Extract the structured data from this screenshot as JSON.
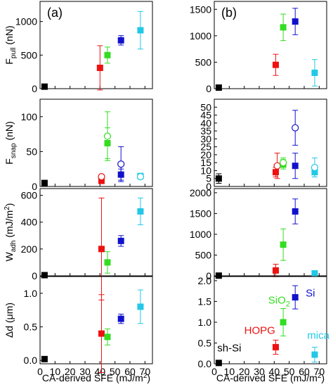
{
  "figure": {
    "x_axis_title": "CA-derived SFE (mJ/m",
    "x_axis_title_sup": "2",
    "x_axis_title_end": ")",
    "row_titles": [
      {
        "main": "F",
        "sub": "pull",
        "tail": " (nN)"
      },
      {
        "main": "F",
        "sub": "snap",
        "tail": " (nN)"
      },
      {
        "main": "W",
        "sub": "adh",
        "tail": " (mJ/m",
        "sup": "2",
        "end": ")"
      },
      {
        "main": "Δd (μm)"
      }
    ]
  },
  "chart_data": [
    {
      "type": "scatter",
      "panel": "a",
      "tag": "(a)",
      "row": 0,
      "xlim": [
        0,
        75
      ],
      "ylim": [
        0,
        1300
      ],
      "xticks": [
        0,
        10,
        20,
        30,
        40,
        50,
        60,
        70
      ],
      "yticks": [
        0,
        500,
        1000
      ],
      "ytick_labels": [
        "0",
        "500",
        "1000"
      ],
      "series": [
        {
          "color": "#000000",
          "points": [
            {
              "x": 3,
              "y": 30,
              "err": 30
            }
          ]
        },
        {
          "color": "#ee1111",
          "points": [
            {
              "x": 40,
              "y": 310,
              "err": 330
            }
          ]
        },
        {
          "color": "#33dd22",
          "points": [
            {
              "x": 45,
              "y": 500,
              "err": 120
            }
          ]
        },
        {
          "color": "#1111cc",
          "points": [
            {
              "x": 54,
              "y": 720,
              "err": 70
            }
          ]
        },
        {
          "color": "#22c8e6",
          "points": [
            {
              "x": 67,
              "y": 870,
              "err": 280
            }
          ]
        }
      ]
    },
    {
      "type": "scatter",
      "panel": "b",
      "tag": "(b)",
      "row": 0,
      "xlim": [
        0,
        75
      ],
      "ylim": [
        0,
        1650
      ],
      "xticks": [
        0,
        10,
        20,
        30,
        40,
        50,
        60,
        70
      ],
      "yticks": [
        0,
        500,
        1000,
        1500
      ],
      "ytick_labels": [
        "0",
        "500",
        "1000",
        "1500"
      ],
      "series": [
        {
          "color": "#000000",
          "points": [
            {
              "x": 3,
              "y": 20,
              "err": 20
            }
          ]
        },
        {
          "color": "#ee1111",
          "points": [
            {
              "x": 41,
              "y": 450,
              "err": 200
            }
          ]
        },
        {
          "color": "#33dd22",
          "points": [
            {
              "x": 46,
              "y": 1160,
              "err": 250
            }
          ]
        },
        {
          "color": "#1111cc",
          "points": [
            {
              "x": 54,
              "y": 1270,
              "err": 250
            }
          ]
        },
        {
          "color": "#22c8e6",
          "points": [
            {
              "x": 67,
              "y": 300,
              "err": 250
            }
          ]
        }
      ]
    },
    {
      "type": "scatter",
      "panel": "a",
      "row": 1,
      "xlim": [
        0,
        75
      ],
      "ylim": [
        0,
        125
      ],
      "xticks": [
        0,
        10,
        20,
        30,
        40,
        50,
        60,
        70
      ],
      "yticks": [
        0,
        50,
        100
      ],
      "ytick_labels": [
        "0",
        "50",
        "100"
      ],
      "series": [
        {
          "color": "#000000",
          "points": [
            {
              "x": 3,
              "y": 5,
              "err": 2
            }
          ]
        },
        {
          "color": "#ee1111",
          "points": [
            {
              "x": 41,
              "y": 8,
              "err": 4
            },
            {
              "x": 41,
              "y": 14,
              "err": 3,
              "open": true
            }
          ]
        },
        {
          "color": "#33dd22",
          "points": [
            {
              "x": 45,
              "y": 62,
              "err": 22
            },
            {
              "x": 45,
              "y": 72,
              "err": 35,
              "open": true
            }
          ]
        },
        {
          "color": "#1111cc",
          "points": [
            {
              "x": 54,
              "y": 17,
              "err": 8
            },
            {
              "x": 54,
              "y": 32,
              "err": 25,
              "open": true
            }
          ]
        },
        {
          "color": "#22c8e6",
          "points": [
            {
              "x": 67,
              "y": 15,
              "err": 3
            },
            {
              "x": 67,
              "y": 14,
              "err": 2,
              "open": true
            }
          ]
        }
      ]
    },
    {
      "type": "scatter",
      "panel": "b",
      "row": 1,
      "xlim": [
        0,
        75
      ],
      "ylim": [
        0,
        55
      ],
      "xticks": [
        0,
        10,
        20,
        30,
        40,
        50,
        60,
        70
      ],
      "yticks": [
        0,
        5,
        10,
        15,
        20,
        25,
        30,
        35,
        40,
        45,
        50
      ],
      "ytick_labels": [
        "0",
        "5",
        "10",
        "15",
        "20",
        "25",
        "30",
        "35",
        "40",
        "45",
        "50"
      ],
      "series": [
        {
          "color": "#000000",
          "points": [
            {
              "x": 3,
              "y": 5,
              "err": 3
            }
          ]
        },
        {
          "color": "#ee1111",
          "points": [
            {
              "x": 41,
              "y": 9,
              "err": 3
            },
            {
              "x": 42,
              "y": 13,
              "err": 8,
              "open": true
            }
          ]
        },
        {
          "color": "#33dd22",
          "points": [
            {
              "x": 46,
              "y": 14,
              "err": 3
            },
            {
              "x": 46,
              "y": 15,
              "err": 3,
              "open": true
            }
          ]
        },
        {
          "color": "#1111cc",
          "points": [
            {
              "x": 54,
              "y": 13,
              "err": 8
            },
            {
              "x": 54,
              "y": 37,
              "err": 11,
              "open": true
            }
          ]
        },
        {
          "color": "#22c8e6",
          "points": [
            {
              "x": 67,
              "y": 9,
              "err": 3
            },
            {
              "x": 67,
              "y": 12,
              "err": 6,
              "open": true
            }
          ]
        }
      ]
    },
    {
      "type": "scatter",
      "panel": "a",
      "row": 2,
      "xlim": [
        0,
        75
      ],
      "ylim": [
        0,
        650
      ],
      "xticks": [
        0,
        10,
        20,
        30,
        40,
        50,
        60,
        70
      ],
      "yticks": [
        0,
        200,
        400,
        600
      ],
      "ytick_labels": [
        "0",
        "200",
        "400",
        "600"
      ],
      "series": [
        {
          "color": "#000000",
          "points": [
            {
              "x": 3,
              "y": 5,
              "err": 5
            }
          ]
        },
        {
          "color": "#ee1111",
          "points": [
            {
              "x": 41,
              "y": 200,
              "err": 380
            }
          ]
        },
        {
          "color": "#33dd22",
          "points": [
            {
              "x": 45,
              "y": 100,
              "err": 80
            }
          ]
        },
        {
          "color": "#1111cc",
          "points": [
            {
              "x": 54,
              "y": 260,
              "err": 40
            }
          ]
        },
        {
          "color": "#22c8e6",
          "points": [
            {
              "x": 67,
              "y": 480,
              "err": 100
            }
          ]
        }
      ]
    },
    {
      "type": "scatter",
      "panel": "b",
      "row": 2,
      "xlim": [
        0,
        75
      ],
      "ylim": [
        0,
        2100
      ],
      "xticks": [
        0,
        10,
        20,
        30,
        40,
        50,
        60,
        70
      ],
      "yticks": [
        0,
        500,
        1000,
        1500,
        2000
      ],
      "ytick_labels": [
        "0",
        "500",
        "1000",
        "1500",
        "2000"
      ],
      "series": [
        {
          "color": "#000000",
          "points": [
            {
              "x": 3,
              "y": 5,
              "err": 5
            }
          ]
        },
        {
          "color": "#ee1111",
          "points": [
            {
              "x": 41,
              "y": 130,
              "err": 150
            }
          ]
        },
        {
          "color": "#33dd22",
          "points": [
            {
              "x": 46,
              "y": 750,
              "err": 380
            }
          ]
        },
        {
          "color": "#1111cc",
          "points": [
            {
              "x": 54,
              "y": 1550,
              "err": 300
            }
          ]
        },
        {
          "color": "#22c8e6",
          "points": [
            {
              "x": 67,
              "y": 60,
              "err": 40
            }
          ]
        }
      ]
    },
    {
      "type": "scatter",
      "panel": "a",
      "row": 3,
      "xlim": [
        0,
        75
      ],
      "ylim": [
        -0.05,
        1.25
      ],
      "xticks": [
        0,
        10,
        20,
        30,
        40,
        50,
        60,
        70
      ],
      "yticks": [
        0.0,
        0.5,
        1.0
      ],
      "ytick_labels": [
        "0.0",
        "0.5",
        "1.0"
      ],
      "show_xticklabels": true,
      "series": [
        {
          "color": "#000000",
          "points": [
            {
              "x": 3,
              "y": 0.02,
              "err": 0.01
            }
          ]
        },
        {
          "color": "#ee1111",
          "points": [
            {
              "x": 41,
              "y": 0.4,
              "err": 0.58
            }
          ]
        },
        {
          "color": "#33dd22",
          "points": [
            {
              "x": 45,
              "y": 0.35,
              "err": 0.12
            }
          ]
        },
        {
          "color": "#1111cc",
          "points": [
            {
              "x": 54,
              "y": 0.62,
              "err": 0.07
            }
          ]
        },
        {
          "color": "#22c8e6",
          "points": [
            {
              "x": 67,
              "y": 0.8,
              "err": 0.25
            }
          ]
        }
      ]
    },
    {
      "type": "scatter",
      "panel": "b",
      "row": 3,
      "xlim": [
        0,
        75
      ],
      "ylim": [
        0,
        2.1
      ],
      "xticks": [
        0,
        10,
        20,
        30,
        40,
        50,
        60,
        70
      ],
      "yticks": [
        0.0,
        0.5,
        1.0,
        1.5,
        2.0
      ],
      "ytick_labels": [
        "0.0",
        "0.5",
        "1.0",
        "1.5",
        "2.0"
      ],
      "show_xticklabels": true,
      "series": [
        {
          "color": "#000000",
          "points": [
            {
              "x": 3,
              "y": 0.02,
              "err": 0.01
            }
          ]
        },
        {
          "color": "#ee1111",
          "points": [
            {
              "x": 41,
              "y": 0.4,
              "err": 0.17
            }
          ]
        },
        {
          "color": "#33dd22",
          "points": [
            {
              "x": 46,
              "y": 1.0,
              "err": 0.33
            }
          ]
        },
        {
          "color": "#1111cc",
          "points": [
            {
              "x": 54,
              "y": 1.6,
              "err": 0.28
            }
          ]
        },
        {
          "color": "#22c8e6",
          "points": [
            {
              "x": 67,
              "y": 0.22,
              "err": 0.18
            }
          ]
        }
      ],
      "annotations": [
        {
          "text": "sh-Si",
          "color": "#000000",
          "x": 2,
          "y": 0.3
        },
        {
          "text": "HOPG",
          "color": "#ee1111",
          "x": 20,
          "y": 0.72
        },
        {
          "text": "SiO",
          "sub": "2",
          "color": "#33dd22",
          "x": 36,
          "y": 1.45
        },
        {
          "text": "Si",
          "color": "#1111cc",
          "x": 61,
          "y": 1.62
        },
        {
          "text": "mica",
          "color": "#22c8e6",
          "x": 62,
          "y": 0.6
        }
      ]
    }
  ]
}
